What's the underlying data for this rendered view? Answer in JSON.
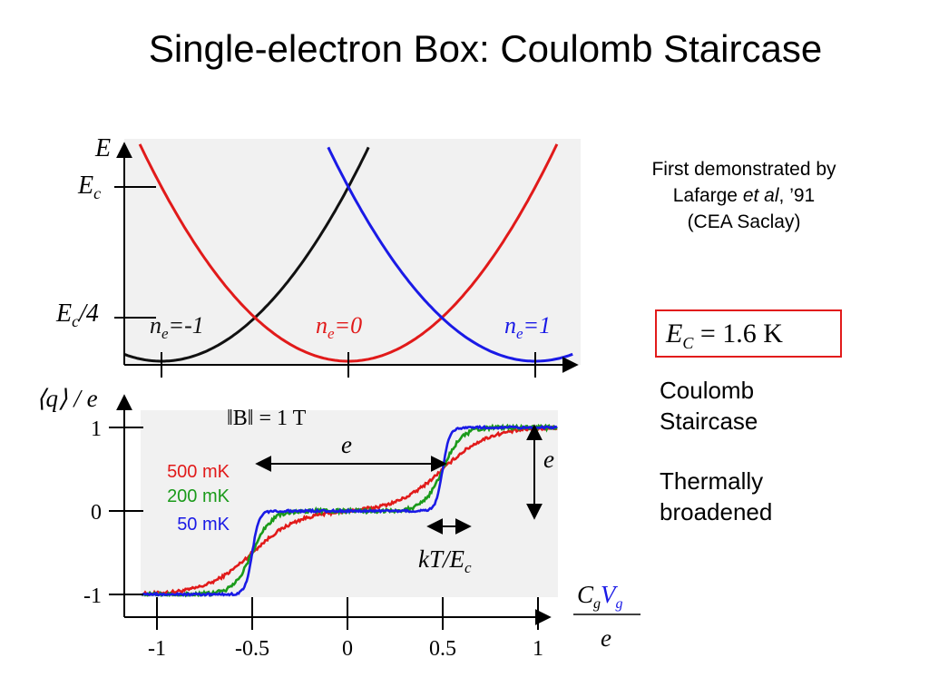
{
  "title": "Single-electron Box: Coulomb Staircase",
  "note": {
    "line1": "First demonstrated by",
    "line2_pre": "Lafarge ",
    "line2_ital": "et al",
    "line2_post": ", ’91",
    "line3": "(CEA Saclay)"
  },
  "ec_box": {
    "symbol": "E",
    "sub": "C",
    "value": "= 1.6 K"
  },
  "bullets": {
    "staircase": [
      "Coulomb",
      "Staircase"
    ],
    "broadened": [
      "Thermally",
      "broadened"
    ]
  },
  "colors": {
    "red": "#e11a1a",
    "green": "#1a9a1a",
    "blue": "#1a1ae6",
    "black": "#111111",
    "panel": "#f1f1f1",
    "box": "#e21b1b"
  },
  "chart_data": [
    {
      "type": "line",
      "ylabel": "E",
      "ytick_labels": [
        {
          "main": "E",
          "sub": "c",
          "tail": ""
        },
        {
          "main": "E",
          "sub": "c",
          "tail": "/4"
        }
      ],
      "yticks": [
        1,
        0.25
      ],
      "xticks": [
        -1,
        0,
        1
      ],
      "xlim": [
        -1.2,
        1.2
      ],
      "ylim": [
        0,
        1.25
      ],
      "series": [
        {
          "label_main": "n",
          "label_sub": "e",
          "label_tail": "=-1",
          "center": -1,
          "color": "black"
        },
        {
          "label_main": "n",
          "label_sub": "e",
          "label_tail": "=0",
          "center": 0,
          "color": "red"
        },
        {
          "label_main": "n",
          "label_sub": "e",
          "label_tail": "=1",
          "center": 1,
          "color": "blue"
        }
      ],
      "note": "E = Ec (x - center)^2"
    },
    {
      "type": "line",
      "ylabel": "⟨q⟩ / e",
      "field_label": "‖B‖ = 1 T",
      "xlabel_num": [
        "C",
        "g",
        "V",
        "g"
      ],
      "xlabel_den": "e",
      "xticks": [
        -1,
        -0.5,
        0,
        0.5,
        1
      ],
      "xtick_labels": [
        "-1",
        "-0.5",
        "0",
        "0.5",
        "1"
      ],
      "yticks": [
        1,
        0,
        -1
      ],
      "ytick_labels": [
        "1",
        "0",
        "-1"
      ],
      "xlim": [
        -1.12,
        1.12
      ],
      "ylim": [
        -1.0,
        1.08
      ],
      "series": [
        {
          "name": "500 mK",
          "color": "red",
          "width": 0.12
        },
        {
          "name": "200 mK",
          "color": "green",
          "width": 0.05
        },
        {
          "name": "50 mK",
          "color": "blue",
          "width": 0.018
        }
      ],
      "annotations": [
        {
          "text": "e",
          "type": "horizontal-arrow",
          "x1": -0.5,
          "x2": 0.5,
          "y": 0.62
        },
        {
          "text": "e",
          "type": "vertical-arrow",
          "x": 0.97,
          "y1": 1,
          "y2": 0
        },
        {
          "text": "kT/E",
          "sub": "c",
          "type": "horizontal-arrow",
          "x1": 0.4,
          "x2": 0.63,
          "y": -0.33
        }
      ]
    }
  ]
}
